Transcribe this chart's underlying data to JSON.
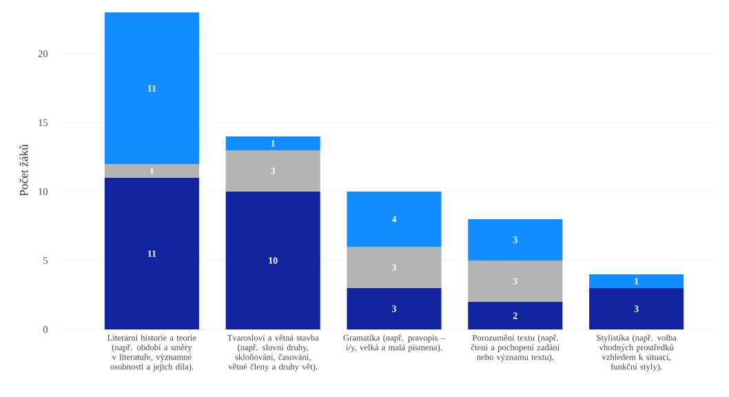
{
  "chart_data": {
    "type": "bar",
    "stacked": true,
    "ylabel": "Počet žáků",
    "categories": [
      "Literární historie a teorie (např. období a směry v literatuře, významné osobnosti a jejich díla).",
      "Tvarosloví a větná stavba (např. slovní druhy, skloňování, časování, větné členy a druhy vět).",
      "Gramatika (např. pravopis – i/y, velká a malá písmena).",
      "Porozumění textu (např. čtení a pochopení zadání nebo významu textu).",
      "Stylistika (např. volba vhodných prostředků vzhledem k situaci, funkční styly)."
    ],
    "series": [
      {
        "color": "#12239e",
        "values": [
          11,
          10,
          3,
          2,
          3
        ]
      },
      {
        "color": "#b3b3b3",
        "values": [
          1,
          3,
          3,
          3,
          null
        ]
      },
      {
        "color": "#118dff",
        "values": [
          11,
          1,
          4,
          3,
          1
        ]
      }
    ],
    "ylim": [
      0,
      23.1
    ],
    "yticks": [
      0,
      5,
      10,
      15,
      20
    ],
    "grid": "y",
    "data_labels": true
  }
}
